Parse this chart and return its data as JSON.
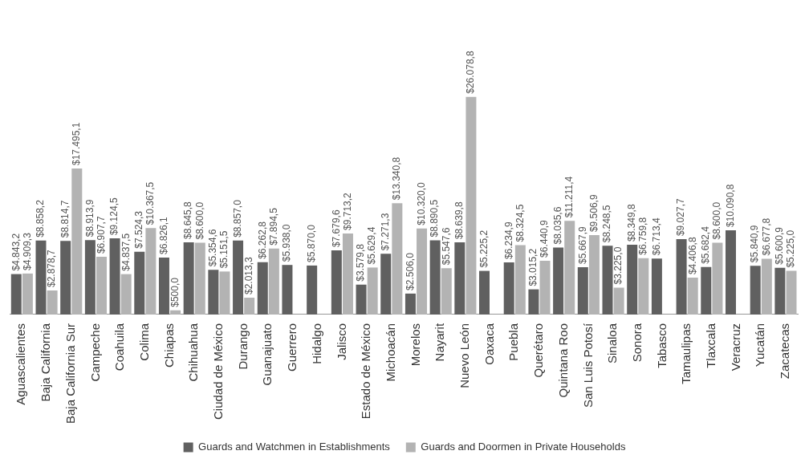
{
  "chart_data": {
    "type": "bar",
    "categories": [
      "Aguascalientes",
      "Baja California",
      "Baja California Sur",
      "Campeche",
      "Coahuila",
      "Colima",
      "Chiapas",
      "Chihuahua",
      "Ciudad de México",
      "Durango",
      "Guanajuato",
      "Guerrero",
      "Hidalgo",
      "Jalisco",
      "Estado de México",
      "Michoacán",
      "Morelos",
      "Nayarit",
      "Nuevo León",
      "Oaxaca",
      "Puebla",
      "Querétaro",
      "Quintana Roo",
      "San Luis Potosí",
      "Sinaloa",
      "Sonora",
      "Tabasco",
      "Tamaulipas",
      "Tlaxcala",
      "Veracruz",
      "Yucatán",
      "Zacatecas"
    ],
    "series": [
      {
        "name": "Guards and Watchmen in Establishments",
        "color": "#606060",
        "values": [
          4843.2,
          8858.2,
          8814.7,
          8913.9,
          9124.5,
          7524.3,
          6826.1,
          8645.8,
          5354.6,
          8857.0,
          6262.8,
          5938.0,
          5870.0,
          7679.6,
          3579.8,
          7271.3,
          2506.0,
          8890.5,
          8639.8,
          5225.2,
          6234.9,
          3015.2,
          8035.6,
          5667.9,
          8248.5,
          8349.8,
          6713.4,
          9027.7,
          5682.4,
          10090.8,
          5840.9,
          5600.9
        ],
        "value_labels": [
          "$4.843,2",
          "$8.858,2",
          "$8.814,7",
          "$8.913,9",
          "$9.124,5",
          "$7.524,3",
          "$6.826,1",
          "$8.645,8",
          "$5.354,6",
          "$8.857,0",
          "$6.262,8",
          "$5.938,0",
          "$5.870,0",
          "$7.679,6",
          "$3.579,8",
          "$7.271,3",
          "$2.506,0",
          "$8.890,5",
          "$8.639,8",
          "$5.225,2",
          "$6.234,9",
          "$3.015,2",
          "$8.035,6",
          "$5.667,9",
          "$8.248,5",
          "$8.349,8",
          "$6.713,4",
          "$9.027,7",
          "$5.682,4",
          "$10.090,8",
          "$5.840,9",
          "$5.600,9"
        ]
      },
      {
        "name": "Guards and Doormen in Private Households",
        "color": "#b3b3b3",
        "values": [
          4909.3,
          2878.7,
          17495.1,
          6907.7,
          4837.5,
          10367.5,
          500.0,
          8600.0,
          5151.5,
          2013.3,
          7894.5,
          null,
          null,
          9713.2,
          5629.4,
          13340.8,
          10320.0,
          5547.6,
          26078.8,
          null,
          8324.5,
          6440.9,
          11211.4,
          9506.9,
          3225.0,
          6759.8,
          null,
          4406.8,
          8600.0,
          null,
          6677.8,
          5225.0
        ],
        "value_labels": [
          "$4.909,3",
          "$2.878,7",
          "$17.495,1",
          "$6.907,7",
          "$4.837,5",
          "$10.367,5",
          "$500,0",
          "$8.600,0",
          "$5.151,5",
          "$2.013,3",
          "$7.894,5",
          null,
          null,
          "$9.713,2",
          "$5.629,4",
          "$13.340,8",
          "$10.320,0",
          "$5.547,6",
          "$26.078,8",
          null,
          "$8.324,5",
          "$6.440,9",
          "$11.211,4",
          "$9.506,9",
          "$3.225,0",
          "$6.759,8",
          null,
          "$4.406,8",
          "$8.600,0",
          null,
          "$6.677,8",
          "$5.225,0"
        ]
      }
    ],
    "legend": "bottom"
  }
}
